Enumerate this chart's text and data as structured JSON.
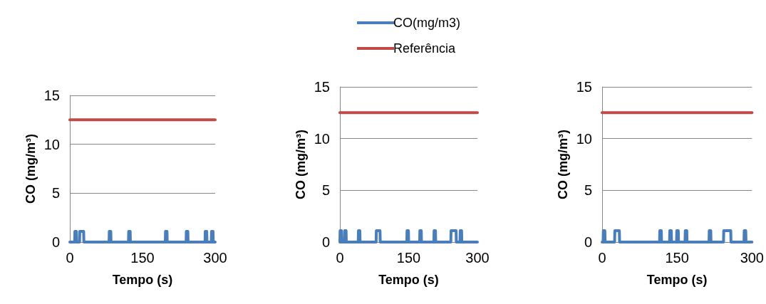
{
  "chart_data": [
    {
      "type": "line",
      "xlabel": "Tempo (s)",
      "ylabel": "CO (mg/m³)",
      "legend": "top",
      "xlim": [
        0,
        300
      ],
      "xticks": [
        0,
        150,
        300
      ],
      "ylim": [
        0,
        15
      ],
      "yticks": [
        0,
        5,
        10,
        15
      ],
      "grid": "y",
      "marker": "none",
      "series": [
        {
          "name": "CO(mg/m3)",
          "color": "#4a7ebb",
          "x": [
            0,
            10,
            10.5,
            13.5,
            14,
            20,
            20.5,
            28.5,
            29,
            81,
            81.5,
            84.5,
            85,
            121,
            121.5,
            124.5,
            125,
            197,
            197.5,
            200.5,
            201,
            240,
            240.5,
            243.5,
            244,
            279,
            279.5,
            282.5,
            283,
            292,
            292.5,
            295.5,
            296,
            300
          ],
          "values": [
            0,
            0,
            1.1,
            1.1,
            0,
            0,
            1.1,
            1.1,
            0,
            0,
            1.1,
            1.1,
            0,
            0,
            1.1,
            1.1,
            0,
            0,
            1.1,
            1.1,
            0,
            0,
            1.1,
            1.1,
            0,
            0,
            1.1,
            1.1,
            0,
            0,
            1.1,
            1.1,
            0,
            0
          ]
        },
        {
          "name": "Referência",
          "color": "#be4b48",
          "x": [
            0,
            300
          ],
          "values": [
            12.5,
            12.5
          ]
        }
      ]
    },
    {
      "type": "line",
      "xlabel": "Tempo (s)",
      "ylabel": "CO (mg/m³)",
      "xlim": [
        0,
        300
      ],
      "xticks": [
        0,
        150,
        300
      ],
      "ylim": [
        0,
        15
      ],
      "yticks": [
        0,
        5,
        10,
        15
      ],
      "grid": "y",
      "marker": "none",
      "series": [
        {
          "color": "#4a7ebb",
          "x": [
            0,
            0.5,
            3.5,
            4,
            10,
            10.5,
            13.5,
            14,
            40,
            40.5,
            43.5,
            44,
            79,
            79.5,
            87.5,
            88,
            146,
            146.5,
            149.5,
            150,
            174,
            174.5,
            177.5,
            178,
            205,
            205.5,
            208.5,
            209,
            242,
            242.5,
            253.5,
            254,
            262,
            262.5,
            265.5,
            266,
            300
          ],
          "values": [
            0,
            1.1,
            1.1,
            0,
            0,
            1.1,
            1.1,
            0,
            0,
            1.1,
            1.1,
            0,
            0,
            1.1,
            1.1,
            0,
            0,
            1.1,
            1.1,
            0,
            0,
            1.1,
            1.1,
            0,
            0,
            1.1,
            1.1,
            0,
            0,
            1.1,
            1.1,
            0,
            0,
            1.1,
            1.1,
            0,
            0
          ]
        },
        {
          "color": "#be4b48",
          "x": [
            0,
            300
          ],
          "values": [
            12.5,
            12.5
          ]
        }
      ]
    },
    {
      "type": "line",
      "xlabel": "Tempo (s)",
      "ylabel": "CO (mg/m³)",
      "xlim": [
        0,
        300
      ],
      "xticks": [
        0,
        150,
        300
      ],
      "ylim": [
        0,
        15
      ],
      "yticks": [
        0,
        5,
        10,
        15
      ],
      "grid": "y",
      "marker": "none",
      "series": [
        {
          "color": "#4a7ebb",
          "x": [
            0,
            2,
            2.5,
            5.5,
            6,
            25,
            25.5,
            34.5,
            35,
            115,
            115.5,
            118.5,
            119,
            135,
            135.5,
            138.5,
            139,
            149,
            149.5,
            152.5,
            153,
            166,
            166.5,
            169.5,
            170,
            214,
            214.5,
            217.5,
            218,
            243,
            243.5,
            257.5,
            258,
            284,
            284.5,
            287.5,
            288,
            300
          ],
          "values": [
            0,
            0,
            1.1,
            1.1,
            0,
            0,
            1.1,
            1.1,
            0,
            0,
            1.1,
            1.1,
            0,
            0,
            1.1,
            1.1,
            0,
            0,
            1.1,
            1.1,
            0,
            0,
            1.1,
            1.1,
            0,
            0,
            1.1,
            1.1,
            0,
            0,
            1.1,
            1.1,
            0,
            0,
            1.1,
            1.1,
            0,
            0
          ]
        },
        {
          "color": "#be4b48",
          "x": [
            0,
            300
          ],
          "values": [
            12.5,
            12.5
          ]
        }
      ]
    }
  ]
}
